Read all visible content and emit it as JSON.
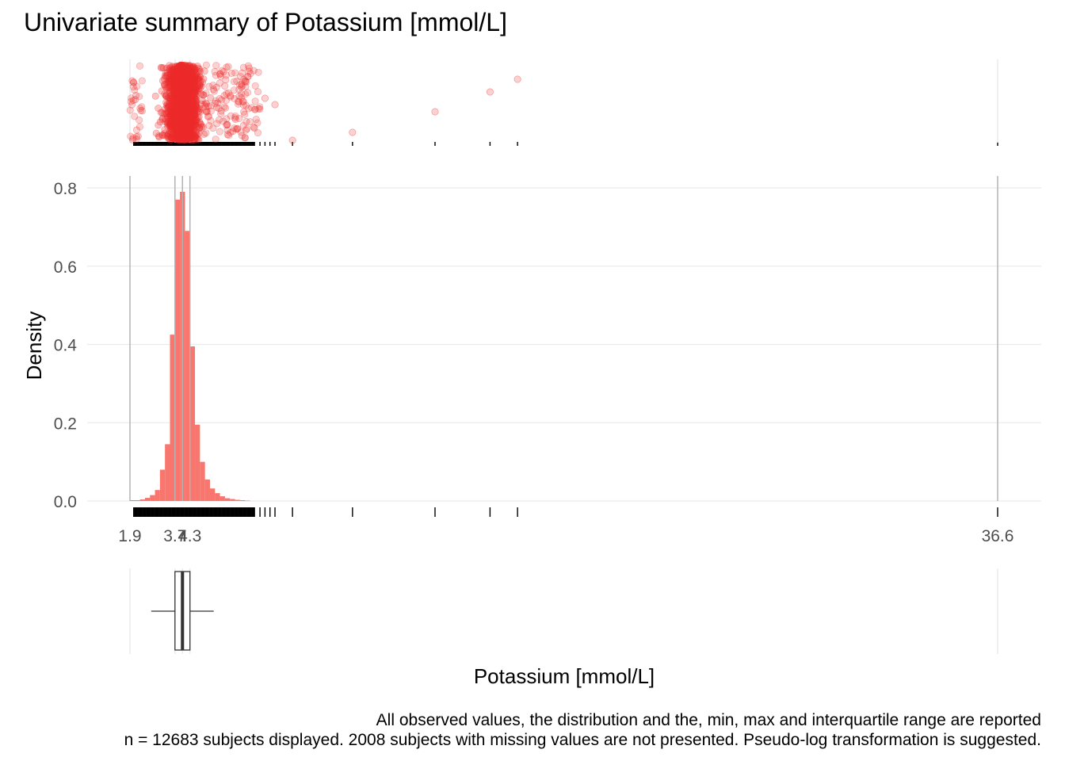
{
  "title": "Univariate summary of Potassium [mmol/L]",
  "caption_line1": "All observed values, the distribution and the, min, max and interquartile range are reported",
  "caption_line2": "n = 12683 subjects displayed. 2008 subjects with missing values are not presented. Pseudo-log transformation is suggested.",
  "colors": {
    "fill": "#F8766D",
    "point": "#EE2C2C",
    "vline": "#b3b3b3",
    "grid": "#ebebeb"
  },
  "chart_data": {
    "type": "histogram",
    "xlabel": "Potassium [mmol/L]",
    "ylabel": "Density",
    "xlim": [
      1.9,
      36.6
    ],
    "ylim": [
      0,
      0.8
    ],
    "y_ticks": [
      0.0,
      0.2,
      0.4,
      0.6,
      0.8
    ],
    "y_tick_labels": [
      "0.0",
      "0.2",
      "0.4",
      "0.6",
      "0.8"
    ],
    "x_ticks": [
      1.9,
      3.7,
      4.0,
      4.3,
      36.6
    ],
    "x_tick_labels": [
      "1.9",
      "3.7",
      "4",
      "4.3",
      "36.6"
    ],
    "summary": {
      "min": 1.9,
      "q1": 3.7,
      "median": 4.0,
      "q3": 4.3,
      "max": 36.6,
      "whisker_low": 2.75,
      "whisker_high": 5.25
    },
    "bin_width": 0.2,
    "bins_x_start": [
      1.9,
      2.1,
      2.3,
      2.5,
      2.7,
      2.9,
      3.1,
      3.3,
      3.5,
      3.7,
      3.9,
      4.1,
      4.3,
      4.5,
      4.7,
      4.9,
      5.1,
      5.3,
      5.5,
      5.7,
      5.9,
      6.1,
      6.3,
      6.5
    ],
    "density": [
      0.002,
      0.002,
      0.004,
      0.008,
      0.015,
      0.028,
      0.08,
      0.145,
      0.425,
      0.77,
      0.79,
      0.69,
      0.395,
      0.195,
      0.1,
      0.055,
      0.032,
      0.02,
      0.012,
      0.007,
      0.005,
      0.003,
      0.002,
      0.001
    ],
    "outlier_values": [
      7.1,
      7.3,
      7.5,
      7.7,
      8.4,
      10.8,
      14.1,
      16.3,
      17.4
    ],
    "rug_dense_range": [
      2.05,
      6.9
    ]
  }
}
